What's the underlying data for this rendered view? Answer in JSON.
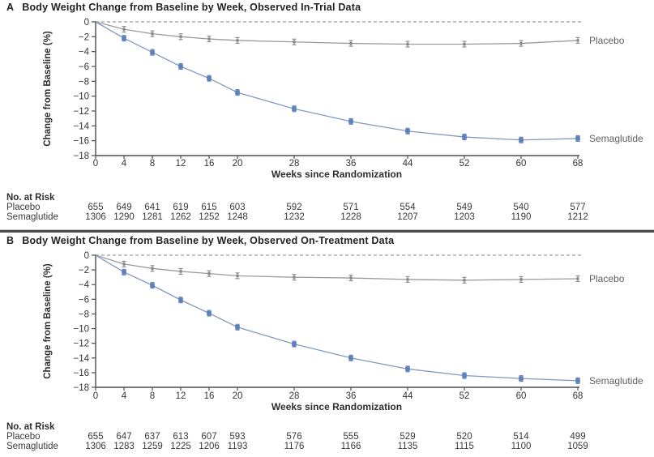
{
  "chart_data": [
    {
      "type": "line",
      "panel": "A",
      "title": "Body Weight Change from Baseline by Week, Observed In-Trial Data",
      "xlabel": "Weeks since Randomization",
      "ylabel": "Change from Baseline (%)",
      "x": [
        0,
        4,
        8,
        12,
        16,
        20,
        28,
        36,
        44,
        52,
        60,
        68
      ],
      "xlim": [
        0,
        68
      ],
      "ylim": [
        -18,
        0
      ],
      "yticks": [
        0,
        -2,
        -4,
        -6,
        -8,
        -10,
        -12,
        -14,
        -16,
        -18
      ],
      "grid": false,
      "zero_reference_line": "dashed",
      "legend_position": "right-of-line-ends",
      "series": [
        {
          "name": "Placebo",
          "color": "#9b9b9b",
          "marker": "errorbar",
          "marker_color": "#868686",
          "values": [
            0,
            -1.0,
            -1.6,
            -2.0,
            -2.3,
            -2.5,
            -2.7,
            -2.9,
            -3.0,
            -3.0,
            -2.9,
            -2.5
          ]
        },
        {
          "name": "Semaglutide",
          "color": "#8199bf",
          "marker": "square",
          "marker_color": "#5e80b8",
          "values": [
            0,
            -2.2,
            -4.1,
            -6.0,
            -7.6,
            -9.5,
            -11.7,
            -13.4,
            -14.7,
            -15.5,
            -15.9,
            -15.7
          ]
        }
      ],
      "risk_table": {
        "label": "No. at Risk",
        "rows": [
          {
            "label": "Placebo",
            "values": [
              655,
              649,
              641,
              619,
              615,
              603,
              592,
              571,
              554,
              549,
              540,
              577
            ]
          },
          {
            "label": "Semaglutide",
            "values": [
              1306,
              1290,
              1281,
              1262,
              1252,
              1248,
              1232,
              1228,
              1207,
              1203,
              1190,
              1212
            ]
          }
        ]
      }
    },
    {
      "type": "line",
      "panel": "B",
      "title": "Body Weight Change from Baseline by Week, Observed On-Treatment Data",
      "xlabel": "Weeks since Randomization",
      "ylabel": "Change from Baseline (%)",
      "x": [
        0,
        4,
        8,
        12,
        16,
        20,
        28,
        36,
        44,
        52,
        60,
        68
      ],
      "xlim": [
        0,
        68
      ],
      "ylim": [
        -18,
        0
      ],
      "yticks": [
        0,
        -2,
        -4,
        -6,
        -8,
        -10,
        -12,
        -14,
        -16,
        -18
      ],
      "grid": false,
      "zero_reference_line": "dashed",
      "legend_position": "right-of-line-ends",
      "series": [
        {
          "name": "Placebo",
          "color": "#9b9b9b",
          "marker": "errorbar",
          "marker_color": "#868686",
          "values": [
            0,
            -1.2,
            -1.8,
            -2.2,
            -2.5,
            -2.8,
            -3.0,
            -3.1,
            -3.3,
            -3.4,
            -3.3,
            -3.2
          ]
        },
        {
          "name": "Semaglutide",
          "color": "#8199bf",
          "marker": "square",
          "marker_color": "#5e80b8",
          "values": [
            0,
            -2.3,
            -4.1,
            -6.1,
            -7.9,
            -9.8,
            -12.1,
            -14.0,
            -15.5,
            -16.4,
            -16.8,
            -17.1
          ]
        }
      ],
      "risk_table": {
        "label": "No. at Risk",
        "rows": [
          {
            "label": "Placebo",
            "values": [
              655,
              647,
              637,
              613,
              607,
              593,
              576,
              555,
              529,
              520,
              514,
              499
            ]
          },
          {
            "label": "Semaglutide",
            "values": [
              1306,
              1283,
              1259,
              1225,
              1206,
              1193,
              1176,
              1166,
              1135,
              1115,
              1100,
              1059
            ]
          }
        ]
      }
    }
  ]
}
